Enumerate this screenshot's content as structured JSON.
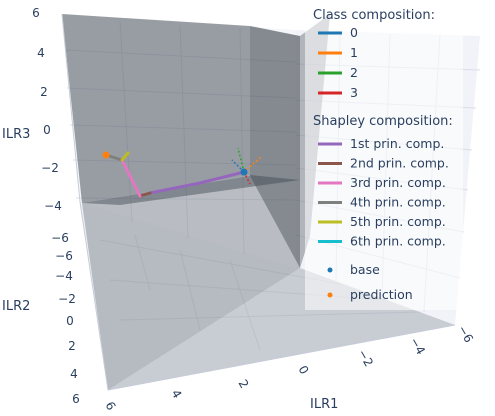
{
  "chart_data": {
    "type": "scatter3d",
    "axes": {
      "x": {
        "title": "ILR1",
        "ticks": [
          "6",
          "4",
          "2",
          "0",
          "−2",
          "−4",
          "−6"
        ]
      },
      "y": {
        "title": "ILR2",
        "ticks": [
          "−6",
          "−4",
          "−2",
          "0",
          "2",
          "4",
          "6"
        ]
      },
      "z": {
        "title": "ILR3",
        "ticks": [
          "6",
          "4",
          "2",
          "0",
          "−2",
          "−4",
          "−6"
        ]
      }
    },
    "legend": {
      "placement": "top-right",
      "class_title": "Class composition:",
      "class_items": [
        {
          "label": "0",
          "color": "#1f77b4"
        },
        {
          "label": "1",
          "color": "#ff7f0e"
        },
        {
          "label": "2",
          "color": "#2ca02c"
        },
        {
          "label": "3",
          "color": "#d62728"
        }
      ],
      "shapley_title": "Shapley composition:",
      "shapley_items": [
        {
          "label": "1st prin. comp.",
          "color": "#9467bd"
        },
        {
          "label": "2nd prin. comp.",
          "color": "#8c564b"
        },
        {
          "label": "3rd prin. comp.",
          "color": "#e377c2"
        },
        {
          "label": "4th prin. comp.",
          "color": "#7f7f7f"
        },
        {
          "label": "5th prin. comp.",
          "color": "#bcbd22"
        },
        {
          "label": "6th prin. comp.",
          "color": "#17becf"
        }
      ],
      "point_items": [
        {
          "label": "base",
          "color": "#1f77b4"
        },
        {
          "label": "prediction",
          "color": "#ff7f0e"
        }
      ]
    },
    "points": {
      "base": {
        "color": "#1f77b4"
      },
      "prediction": {
        "color": "#ff7f0e"
      }
    }
  }
}
